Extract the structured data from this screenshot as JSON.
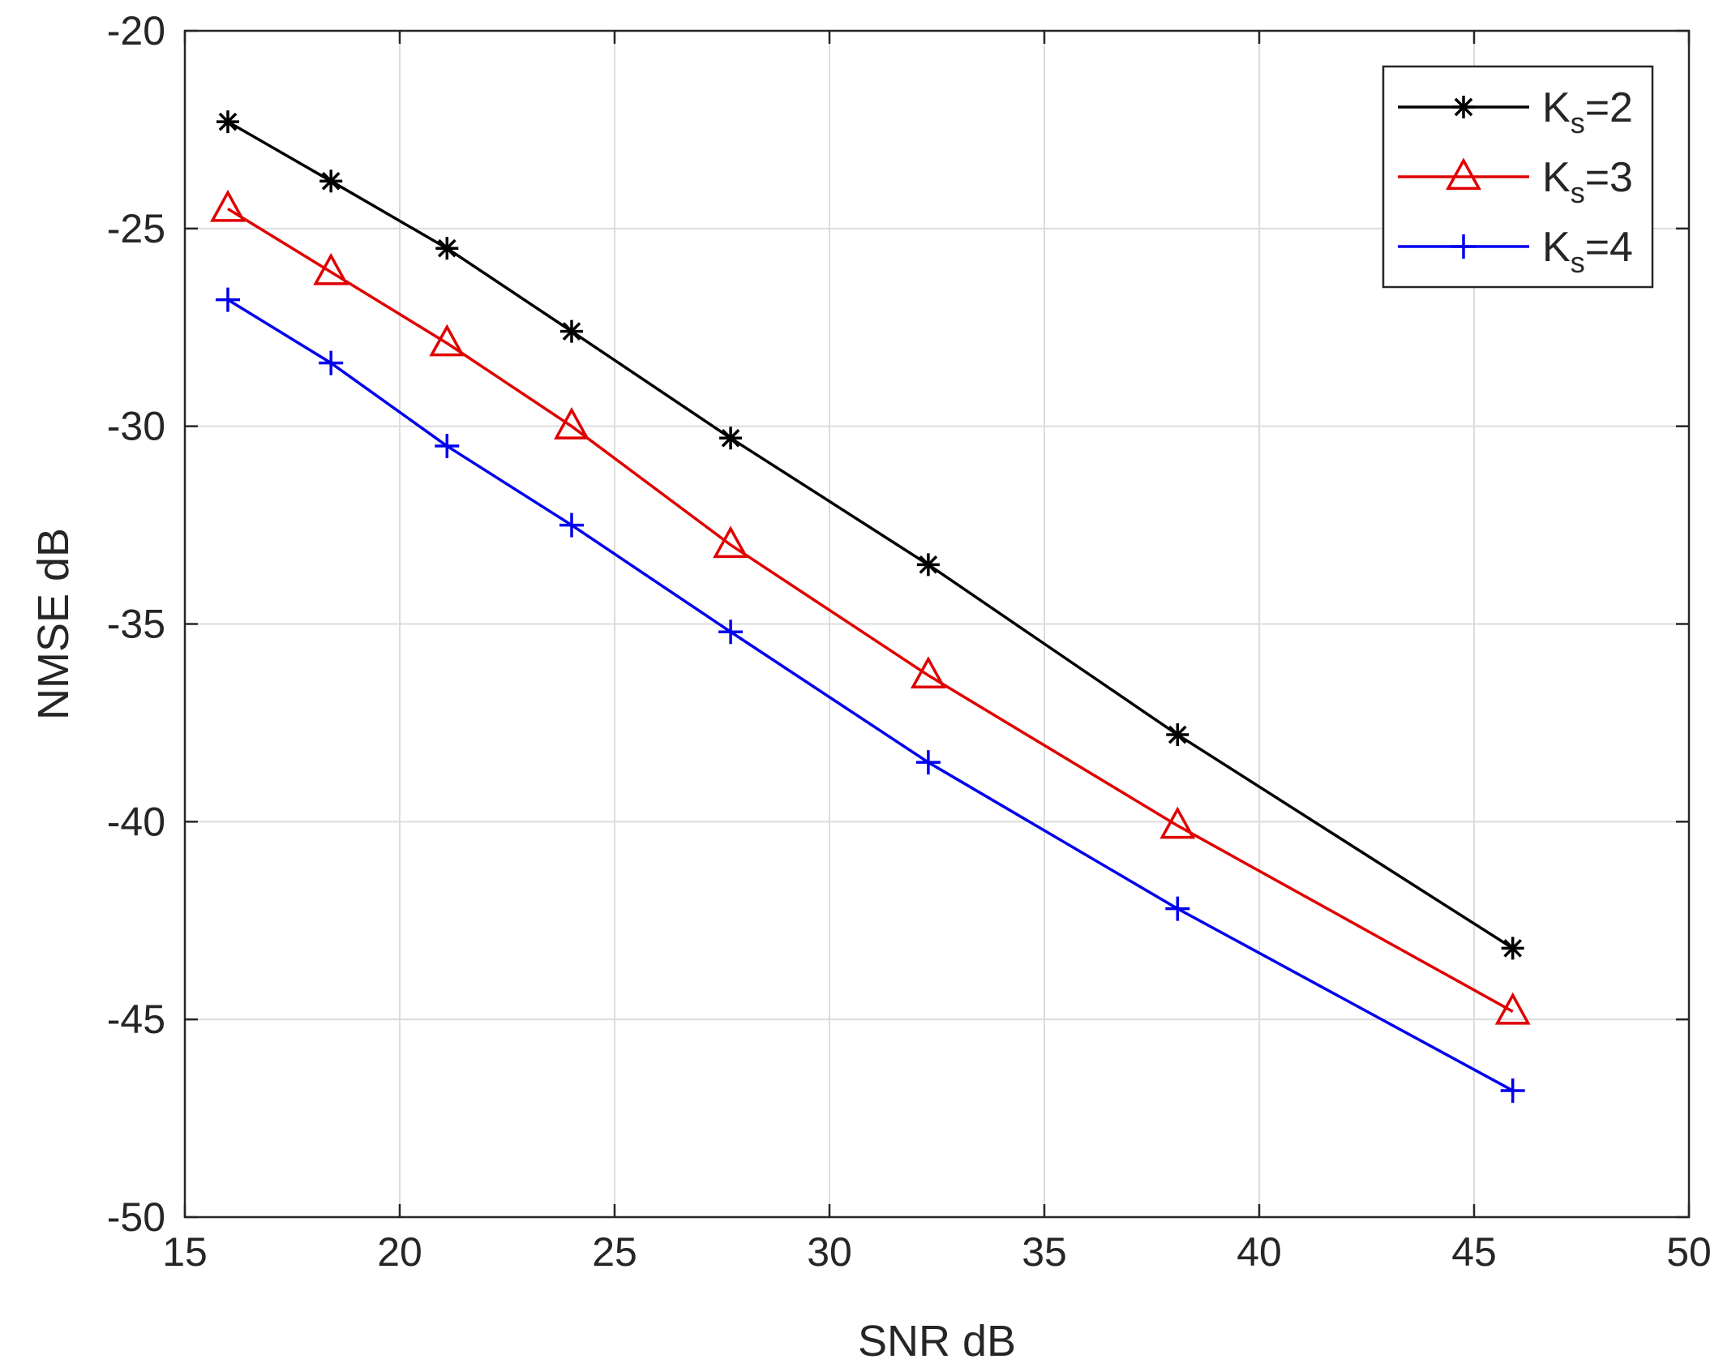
{
  "chart_data": {
    "type": "line",
    "title": "",
    "xlabel": "SNR dB",
    "ylabel": "NMSE dB",
    "xlim": [
      15,
      50
    ],
    "ylim": [
      -50,
      -20
    ],
    "xticks": [
      15,
      20,
      25,
      30,
      35,
      40,
      45,
      50
    ],
    "yticks": [
      -50,
      -45,
      -40,
      -35,
      -30,
      -25,
      -20
    ],
    "xtick_labels": [
      "15",
      "20",
      "25",
      "30",
      "35",
      "40",
      "45",
      "50"
    ],
    "ytick_labels": [
      "-50",
      "-45",
      "-40",
      "-35",
      "-30",
      "-25",
      "-20"
    ],
    "grid": true,
    "legend_position": "top-right",
    "x": [
      16,
      18.4,
      21.1,
      24,
      27.7,
      32.3,
      38.1,
      45.9
    ],
    "series": [
      {
        "name": "Ks=2",
        "label_main": "K",
        "label_sub": "s",
        "label_tail": "=2",
        "color": "#000000",
        "marker": "asterisk",
        "values": [
          -22.3,
          -23.8,
          -25.5,
          -27.6,
          -30.3,
          -33.5,
          -37.8,
          -43.2
        ]
      },
      {
        "name": "Ks=3",
        "label_main": "K",
        "label_sub": "s",
        "label_tail": "=3",
        "color": "#e00000",
        "marker": "triangle",
        "values": [
          -24.5,
          -26.1,
          -27.9,
          -30.0,
          -33.0,
          -36.3,
          -40.1,
          -44.8
        ]
      },
      {
        "name": "Ks=4",
        "label_main": "K",
        "label_sub": "s",
        "label_tail": "=4",
        "color": "#0000ee",
        "marker": "plus",
        "values": [
          -26.8,
          -28.4,
          -30.5,
          -32.5,
          -35.2,
          -38.5,
          -42.2,
          -46.8
        ]
      }
    ]
  }
}
